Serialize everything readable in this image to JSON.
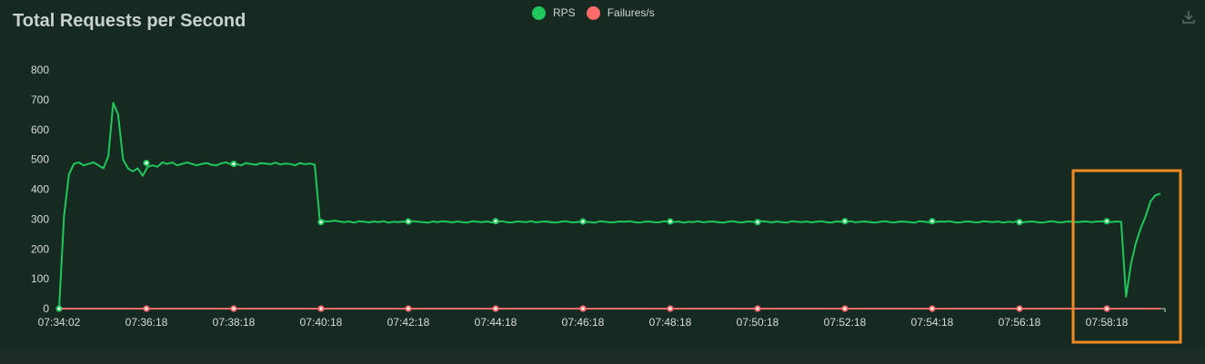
{
  "chart_data": {
    "type": "line",
    "title": "Total Requests per Second",
    "xlabel": "",
    "ylabel": "",
    "ylim": [
      0,
      800
    ],
    "yticks": [
      0,
      100,
      200,
      300,
      400,
      500,
      600,
      700,
      800
    ],
    "x_labels": [
      "07:34:02",
      "07:36:18",
      "07:38:18",
      "07:40:18",
      "07:42:18",
      "07:44:18",
      "07:46:18",
      "07:48:18",
      "07:50:18",
      "07:52:18",
      "07:54:18",
      "07:56:18",
      "07:58:18"
    ],
    "grid": false,
    "legend": "top-center",
    "series": [
      {
        "name": "RPS",
        "color": "#1ec85a",
        "values": [
          0,
          310,
          450,
          485,
          490,
          480,
          485,
          490,
          480,
          470,
          510,
          690,
          650,
          500,
          470,
          460,
          470,
          445,
          475,
          480,
          475,
          490,
          485,
          490,
          480,
          485,
          490,
          485,
          480,
          485,
          488,
          482,
          480,
          487,
          490,
          483,
          485,
          480,
          488,
          485,
          482,
          488,
          486,
          484,
          489,
          483,
          486,
          485,
          480,
          488,
          484,
          486,
          482,
          300,
          293,
          292,
          295,
          292,
          290,
          292,
          288,
          293,
          291,
          289,
          292,
          290,
          293,
          288,
          291,
          290,
          292,
          289,
          293,
          291,
          290,
          288,
          292,
          290,
          293,
          291,
          289,
          292,
          290,
          288,
          293,
          291,
          290,
          292,
          289,
          291,
          293,
          290,
          288,
          292,
          291,
          290,
          293,
          289,
          291,
          292,
          290,
          288,
          291,
          293,
          290,
          289,
          292,
          291,
          290,
          288,
          293,
          291,
          289,
          290,
          292,
          291,
          293,
          290,
          288,
          291,
          292,
          290,
          289,
          293,
          291,
          290,
          292,
          288,
          291,
          290,
          293,
          289,
          291,
          292,
          290,
          288,
          291,
          293,
          290,
          289,
          292,
          291,
          290,
          293,
          291,
          289,
          292,
          290,
          288,
          293,
          291,
          290,
          292,
          289,
          291,
          293,
          290,
          288,
          292,
          291,
          290,
          293,
          289,
          291,
          292,
          290,
          288,
          291,
          293,
          290,
          289,
          292,
          291,
          290,
          288,
          293,
          291,
          289,
          290,
          292,
          291,
          293,
          290,
          288,
          291,
          292,
          290,
          289,
          293,
          291,
          290,
          292,
          288,
          291,
          290,
          293,
          289,
          291,
          292,
          290,
          288,
          291,
          293,
          290,
          289,
          292,
          291,
          290,
          291,
          292,
          290,
          292,
          292,
          293,
          290,
          292,
          291,
          40,
          150,
          220,
          270,
          310,
          360,
          380,
          385
        ],
        "markers": [
          0,
          488,
          485,
          290,
          292,
          293,
          292,
          292,
          290,
          293,
          293,
          290,
          293
        ]
      },
      {
        "name": "Failures/s",
        "color": "#ff6b6b",
        "values": [
          0,
          0,
          0,
          0,
          0,
          0,
          0,
          0,
          0,
          0,
          0,
          0,
          0
        ],
        "markers": [
          0,
          0,
          0,
          0,
          0,
          0,
          0,
          0,
          0,
          0,
          0,
          0,
          0
        ]
      }
    ],
    "highlight_box": {
      "color": "#f08a24",
      "from_label": "07:58:18",
      "note": ""
    }
  },
  "download_icon": "download-icon"
}
